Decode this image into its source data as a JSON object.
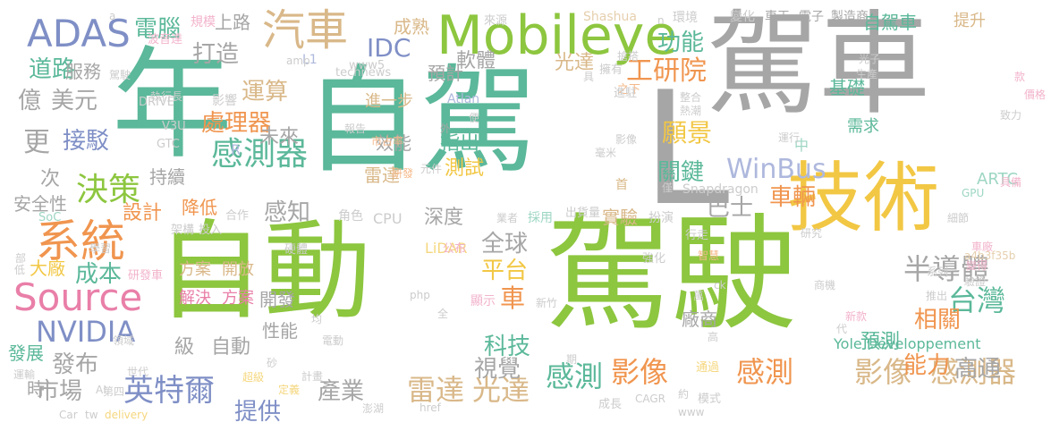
{
  "palette": {
    "green": "#8dc63f",
    "teal": "#5bb89a",
    "gray": "#a6a6a6",
    "yellow": "#f2c744",
    "tan": "#d9b889",
    "pink": "#e97fa8",
    "orange": "#f0954f",
    "blue": "#7f8fc6",
    "light_green": "#b7d97a",
    "light_teal": "#9dd6c3",
    "light_gray": "#cccccc",
    "light_yellow": "#f5d77e",
    "light_tan": "#e6cfae",
    "light_pink": "#f2b3cb",
    "light_orange": "#f5b98a",
    "light_blue": "#aeb8dd",
    "dark_gray": "#888888"
  },
  "words": [
    {
      "text": "自動",
      "color": "green"
    },
    {
      "text": "駕駛",
      "color": "green"
    },
    {
      "text": "自駕",
      "color": "teal"
    },
    {
      "text": "駕車",
      "color": "gray"
    },
    {
      "text": "年",
      "color": "teal"
    },
    {
      "text": "L",
      "color": "gray"
    },
    {
      "text": "技術",
      "color": "yellow"
    },
    {
      "text": "Mobileye",
      "color": "green"
    },
    {
      "text": "汽車",
      "color": "tan"
    },
    {
      "text": "系統",
      "color": "orange"
    },
    {
      "text": "Source",
      "color": "pink"
    },
    {
      "text": "ADAS",
      "color": "blue"
    },
    {
      "text": "感測器",
      "color": "teal"
    },
    {
      "text": "決策",
      "color": "green"
    },
    {
      "text": "台灣",
      "color": "teal"
    },
    {
      "text": "半導體",
      "color": "gray"
    },
    {
      "text": "英特爾",
      "color": "blue"
    },
    {
      "text": "影像",
      "color": "orange"
    },
    {
      "text": "感測",
      "color": "orange"
    },
    {
      "text": "影像",
      "color": "tan"
    },
    {
      "text": "感測器",
      "color": "tan"
    },
    {
      "text": "雷達",
      "color": "tan"
    },
    {
      "text": "光達",
      "color": "tan"
    },
    {
      "text": "感測",
      "color": "teal"
    },
    {
      "text": "NVIDIA",
      "color": "blue"
    },
    {
      "text": "處理器",
      "color": "orange"
    },
    {
      "text": "更",
      "color": "gray"
    },
    {
      "text": "億",
      "color": "gray"
    },
    {
      "text": "美元",
      "color": "gray"
    },
    {
      "text": "道路",
      "color": "teal"
    },
    {
      "text": "電腦",
      "color": "teal"
    },
    {
      "text": "打造",
      "color": "gray"
    },
    {
      "text": "IDC",
      "color": "blue"
    },
    {
      "text": "功能",
      "color": "teal"
    },
    {
      "text": "工研院",
      "color": "orange"
    },
    {
      "text": "車輛",
      "color": "orange"
    },
    {
      "text": "WinBus",
      "color": "light_blue"
    },
    {
      "text": "巴士",
      "color": "gray"
    },
    {
      "text": "關鍵",
      "color": "teal"
    },
    {
      "text": "願景",
      "color": "yellow"
    },
    {
      "text": "運算",
      "color": "tan"
    },
    {
      "text": "感知",
      "color": "gray"
    },
    {
      "text": "接駁",
      "color": "blue"
    },
    {
      "text": "全球",
      "color": "gray"
    },
    {
      "text": "平台",
      "color": "yellow"
    },
    {
      "text": "車",
      "color": "orange"
    },
    {
      "text": "科技",
      "color": "teal"
    },
    {
      "text": "視覺",
      "color": "gray"
    },
    {
      "text": "發布",
      "color": "gray"
    },
    {
      "text": "市場",
      "color": "gray"
    },
    {
      "text": "產業",
      "color": "gray"
    },
    {
      "text": "提供",
      "color": "blue"
    },
    {
      "text": "能力",
      "color": "orange"
    },
    {
      "text": "高通",
      "color": "gray"
    },
    {
      "text": "相關",
      "color": "orange"
    },
    {
      "text": "預測",
      "color": "teal"
    },
    {
      "text": "設計",
      "color": "orange"
    },
    {
      "text": "成本",
      "color": "teal"
    },
    {
      "text": "方案",
      "color": "tan"
    },
    {
      "text": "開放",
      "color": "tan"
    },
    {
      "text": "解決",
      "color": "pink"
    },
    {
      "text": "方案",
      "color": "pink"
    },
    {
      "text": "級",
      "color": "gray"
    },
    {
      "text": "自動",
      "color": "gray"
    },
    {
      "text": "測試",
      "color": "yellow"
    },
    {
      "text": "雷達",
      "color": "tan"
    },
    {
      "text": "效能",
      "color": "gray"
    },
    {
      "text": "進一步",
      "color": "tan"
    },
    {
      "text": "光達",
      "color": "tan"
    },
    {
      "text": "軟體",
      "color": "gray"
    },
    {
      "text": "基礎",
      "color": "teal"
    },
    {
      "text": "需求",
      "color": "teal"
    },
    {
      "text": "自駕車",
      "color": "teal"
    },
    {
      "text": "提升",
      "color": "tan"
    },
    {
      "text": "服務",
      "color": "gray"
    },
    {
      "text": "未來",
      "color": "gray"
    },
    {
      "text": "指出",
      "color": "teal"
    },
    {
      "text": "持續",
      "color": "gray"
    },
    {
      "text": "降低",
      "color": "orange"
    },
    {
      "text": "次",
      "color": "gray"
    },
    {
      "text": "安全性",
      "color": "gray"
    },
    {
      "text": "大廠",
      "color": "yellow"
    },
    {
      "text": "發展",
      "color": "teal"
    },
    {
      "text": "ARTC",
      "color": "light_teal"
    },
    {
      "text": "實驗",
      "color": "tan"
    },
    {
      "text": "深度",
      "color": "gray"
    },
    {
      "text": "開發",
      "color": "gray"
    },
    {
      "text": "性能",
      "color": "gray"
    },
    {
      "text": "廠商",
      "color": "gray"
    },
    {
      "text": "時",
      "color": "gray"
    },
    {
      "text": "上路",
      "color": "gray"
    },
    {
      "text": "成熟",
      "color": "tan"
    },
    {
      "text": "預計",
      "color": "gray"
    },
    {
      "text": "Yole Développement",
      "color": "teal"
    },
    {
      "text": "Shashua",
      "color": "light_tan"
    },
    {
      "text": "Snapdragon",
      "color": "light_gray"
    },
    {
      "text": "LiDAR",
      "color": "light_yellow"
    },
    {
      "text": "Atlan",
      "color": "light_blue"
    },
    {
      "text": "DRIVE",
      "color": "light_gray"
    },
    {
      "text": "V3U",
      "color": "light_gray"
    },
    {
      "text": "GTC",
      "color": "light_gray"
    },
    {
      "text": "SoC",
      "color": "light_teal"
    },
    {
      "text": "GPU",
      "color": "light_teal"
    },
    {
      "text": "CPU",
      "color": "light_gray"
    },
    {
      "text": "L1",
      "color": "light_blue"
    },
    {
      "text": "www5",
      "color": "light_gray"
    },
    {
      "text": "technews",
      "color": "light_gray"
    },
    {
      "text": "a4b3f35b",
      "color": "light_tan"
    },
    {
      "text": "外",
      "color": "gray"
    },
    {
      "text": "R",
      "color": "light_blue"
    },
    {
      "text": "中",
      "color": "light_teal"
    },
    {
      "text": "首",
      "color": "tan"
    },
    {
      "text": "車王",
      "color": "gray"
    },
    {
      "text": "電子",
      "color": "gray"
    },
    {
      "text": "製造商",
      "color": "gray"
    },
    {
      "text": "環境",
      "color": "light_gray"
    },
    {
      "text": "變化",
      "color": "light_gray"
    },
    {
      "text": "來源",
      "color": "light_gray"
    },
    {
      "text": "規模",
      "color": "light_pink"
    },
    {
      "text": "波音達",
      "color": "light_pink"
    },
    {
      "text": "執行長",
      "color": "light_gray"
    },
    {
      "text": "影響",
      "color": "light_gray"
    },
    {
      "text": "業者",
      "color": "light_gray"
    },
    {
      "text": "採用",
      "color": "light_teal"
    },
    {
      "text": "角色",
      "color": "light_gray"
    },
    {
      "text": "出貨量",
      "color": "light_gray"
    },
    {
      "text": "公布",
      "color": "light_pink"
    },
    {
      "text": "強化",
      "color": "light_gray"
    },
    {
      "text": "行走",
      "color": "light_gray"
    },
    {
      "text": "扮演",
      "color": "light_gray"
    },
    {
      "text": "顯示",
      "color": "light_pink"
    },
    {
      "text": "新竹",
      "color": "light_gray"
    },
    {
      "text": "學習",
      "color": "light_gray"
    },
    {
      "text": "架構",
      "color": "light_gray"
    },
    {
      "text": "投入",
      "color": "light_gray"
    },
    {
      "text": "合作",
      "color": "light_gray"
    },
    {
      "text": "硬體",
      "color": "light_gray"
    },
    {
      "text": "研發車",
      "color": "light_pink"
    },
    {
      "text": "領域",
      "color": "light_gray"
    },
    {
      "text": "世代",
      "color": "light_gray"
    },
    {
      "text": "運輸",
      "color": "light_gray"
    },
    {
      "text": "超級",
      "color": "light_yellow"
    },
    {
      "text": "定義",
      "color": "light_yellow"
    },
    {
      "text": "計畫",
      "color": "light_gray"
    },
    {
      "text": "澎湖",
      "color": "light_gray"
    },
    {
      "text": "成長",
      "color": "light_gray"
    },
    {
      "text": "擁有",
      "color": "light_gray"
    },
    {
      "text": "通過",
      "color": "light_yellow"
    },
    {
      "text": "模式",
      "color": "light_gray"
    },
    {
      "text": "車廠",
      "color": "light_pink"
    },
    {
      "text": "變得",
      "color": "light_pink"
    },
    {
      "text": "驗證",
      "color": "light_gray"
    },
    {
      "text": "系列",
      "color": "light_gray"
    },
    {
      "text": "新款",
      "color": "light_pink"
    },
    {
      "text": "細節",
      "color": "light_gray"
    },
    {
      "text": "研究",
      "color": "light_gray"
    },
    {
      "text": "具備",
      "color": "light_pink"
    },
    {
      "text": "致力",
      "color": "light_gray"
    },
    {
      "text": "款",
      "color": "light_pink"
    },
    {
      "text": "價格",
      "color": "light_pink"
    },
    {
      "text": "之下",
      "color": "light_orange"
    },
    {
      "text": "進駐",
      "color": "light_gray"
    },
    {
      "text": "整合",
      "color": "light_gray"
    },
    {
      "text": "熱潮",
      "color": "light_gray"
    },
    {
      "text": "智慧",
      "color": "light_orange"
    },
    {
      "text": "研發",
      "color": "light_orange"
    },
    {
      "text": "市占率",
      "color": "light_orange"
    },
    {
      "text": "元件",
      "color": "light_gray"
    },
    {
      "text": "報告",
      "color": "light_gray"
    },
    {
      "text": "第四",
      "color": "light_gray"
    },
    {
      "text": "影像",
      "color": "light_gray"
    },
    {
      "text": "毫米",
      "color": "light_gray"
    },
    {
      "text": "運行",
      "color": "light_gray"
    },
    {
      "text": "光子",
      "color": "light_gray"
    },
    {
      "text": "生產",
      "color": "light_gray"
    },
    {
      "text": "推出",
      "color": "light_gray"
    },
    {
      "text": "電動",
      "color": "light_gray"
    },
    {
      "text": "部",
      "color": "light_gray"
    },
    {
      "text": "低",
      "color": "light_gray"
    },
    {
      "text": "均",
      "color": "light_gray"
    },
    {
      "text": "全",
      "color": "light_gray"
    },
    {
      "text": "萬",
      "color": "light_gray"
    },
    {
      "text": "約",
      "color": "light_gray"
    },
    {
      "text": "代",
      "color": "light_gray"
    },
    {
      "text": "高",
      "color": "light_gray"
    },
    {
      "text": "僅",
      "color": "light_gray"
    },
    {
      "text": "砂",
      "color": "light_gray"
    },
    {
      "text": "期",
      "color": "light_gray"
    },
    {
      "text": "便",
      "color": "light_gray"
    },
    {
      "text": "具",
      "color": "light_gray"
    },
    {
      "text": "ck",
      "color": "light_gray"
    },
    {
      "text": "php",
      "color": "light_gray"
    },
    {
      "text": "Car",
      "color": "light_gray"
    },
    {
      "text": "tw",
      "color": "light_gray"
    },
    {
      "text": "delivery",
      "color": "light_yellow"
    },
    {
      "text": "AI",
      "color": "light_gray"
    },
    {
      "text": "amp",
      "color": "light_gray"
    },
    {
      "text": "href",
      "color": "light_gray"
    },
    {
      "text": "CAGR",
      "color": "light_gray"
    },
    {
      "text": "www",
      "color": "light_gray"
    },
    {
      "text": "a",
      "color": "light_gray"
    },
    {
      "text": "n",
      "color": "light_gray"
    },
    {
      "text": "商機",
      "color": "light_gray"
    },
    {
      "text": "搶搭",
      "color": "light_gray"
    },
    {
      "text": "駕駛",
      "color": "light_gray"
    }
  ]
}
